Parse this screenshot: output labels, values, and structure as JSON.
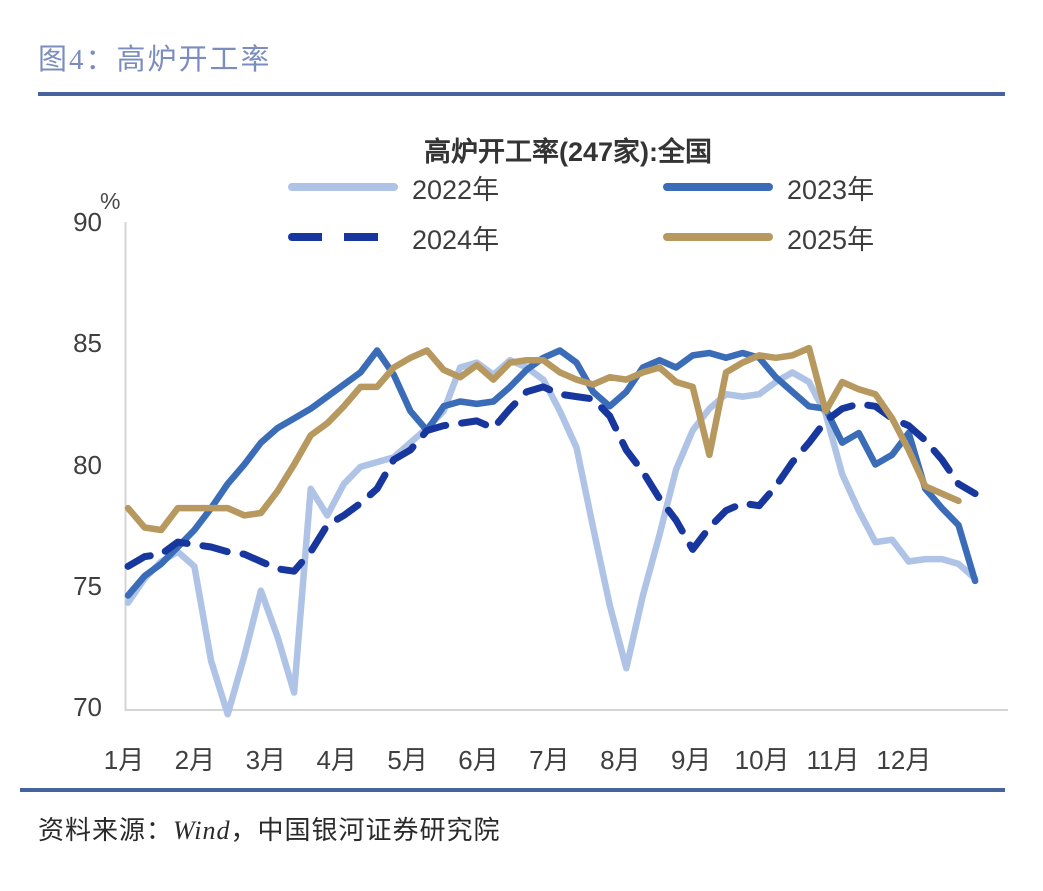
{
  "figure": {
    "caption": "图4：高炉开工率"
  },
  "footer": {
    "source_prefix": "资料来源：",
    "source_wind": "Wind",
    "source_suffix": "，中国银河证券研究院"
  },
  "chart_data": {
    "type": "line",
    "title": "高炉开工率(247家):全国",
    "y_unit": "%",
    "y_min": 70,
    "y_max": 90,
    "y_ticks": [
      90,
      85,
      80,
      75,
      70
    ],
    "x_labels": [
      "1月",
      "2月",
      "3月",
      "4月",
      "5月",
      "6月",
      "7月",
      "8月",
      "9月",
      "10月",
      "11月",
      "12月"
    ],
    "x_axis_note": "weekly points within each year",
    "legend_position": "top",
    "grid": false,
    "series": [
      {
        "name": "2022年",
        "color": "#aec3e6",
        "dashed": false,
        "values": [
          74.3,
          75.3,
          76.0,
          76.4,
          75.8,
          71.9,
          69.7,
          72.1,
          74.8,
          72.9,
          70.6,
          79.0,
          77.9,
          79.2,
          79.9,
          80.1,
          80.3,
          80.9,
          81.5,
          82.2,
          84.0,
          84.2,
          83.7,
          84.3,
          84.0,
          83.5,
          82.2,
          80.7,
          77.4,
          74.2,
          71.6,
          74.6,
          77.1,
          79.8,
          81.4,
          82.3,
          82.9,
          82.8,
          82.9,
          83.4,
          83.8,
          83.4,
          82.1,
          79.6,
          78.1,
          76.8,
          76.9,
          76.0,
          76.1,
          76.1,
          75.9,
          75.3
        ]
      },
      {
        "name": "2023年",
        "color": "#3a6cb8",
        "dashed": false,
        "values": [
          74.6,
          75.4,
          75.9,
          76.6,
          77.3,
          78.2,
          79.2,
          80.0,
          80.9,
          81.5,
          81.9,
          82.3,
          82.8,
          83.3,
          83.8,
          84.7,
          83.7,
          82.2,
          81.4,
          82.4,
          82.6,
          82.5,
          82.6,
          83.2,
          83.9,
          84.4,
          84.7,
          84.2,
          83.0,
          82.4,
          83.0,
          84.0,
          84.3,
          84.0,
          84.5,
          84.6,
          84.4,
          84.6,
          84.4,
          83.6,
          83.0,
          82.4,
          82.3,
          80.9,
          81.3,
          80.0,
          80.4,
          81.3,
          79.0,
          78.2,
          77.5,
          75.2
        ]
      },
      {
        "name": "2024年",
        "color": "#17379e",
        "dashed": true,
        "values": [
          75.8,
          76.2,
          76.3,
          76.8,
          76.7,
          76.6,
          76.4,
          76.3,
          76.0,
          75.7,
          75.6,
          76.4,
          77.5,
          77.9,
          78.4,
          79.0,
          80.2,
          80.6,
          81.4,
          81.6,
          81.7,
          81.8,
          81.5,
          82.3,
          83.0,
          83.2,
          82.9,
          82.8,
          82.7,
          82.0,
          80.6,
          79.7,
          78.6,
          77.7,
          76.5,
          77.4,
          78.1,
          78.4,
          78.3,
          79.1,
          80.1,
          80.9,
          81.8,
          82.3,
          82.5,
          82.4,
          81.9,
          81.6,
          81.0,
          80.2,
          79.2,
          78.8
        ]
      },
      {
        "name": "2025年",
        "color": "#b7995f",
        "dashed": false,
        "values": [
          78.2,
          77.4,
          77.3,
          78.2,
          78.2,
          78.2,
          78.2,
          77.9,
          78.0,
          78.9,
          80.0,
          81.2,
          81.7,
          82.4,
          83.2,
          83.2,
          84.0,
          84.4,
          84.7,
          83.9,
          83.6,
          84.1,
          83.5,
          84.2,
          84.3,
          84.3,
          83.8,
          83.5,
          83.3,
          83.6,
          83.5,
          83.8,
          84.0,
          83.4,
          83.2,
          80.4,
          83.8,
          84.2,
          84.5,
          84.4,
          84.5,
          84.8,
          82.2,
          83.4,
          83.1,
          82.9,
          81.9,
          80.6,
          79.1,
          78.8,
          78.5
        ]
      }
    ]
  }
}
